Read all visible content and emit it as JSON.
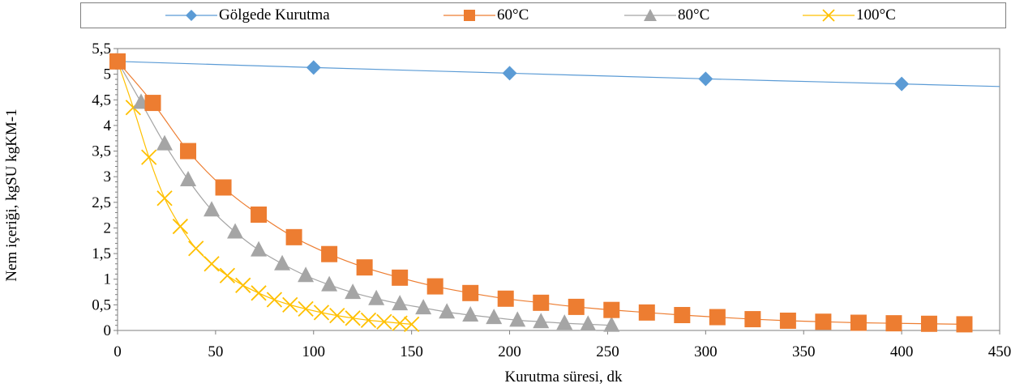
{
  "chart_data": {
    "type": "line",
    "title": "",
    "xlabel": "Kurutma süresi, dk",
    "ylabel": "Nem içeriği, kgSU kgKM-1",
    "xlim": [
      0,
      450
    ],
    "ylim": [
      0,
      5.5
    ],
    "x_ticks": [
      "0",
      "50",
      "100",
      "150",
      "200",
      "250",
      "300",
      "350",
      "400",
      "450"
    ],
    "y_ticks": [
      "0",
      "0,5",
      "1",
      "1,5",
      "2",
      "2,5",
      "3",
      "3,5",
      "4",
      "4,5",
      "5",
      "5,5"
    ],
    "legend_position": "top",
    "series": [
      {
        "name": "Gölgede Kurutma",
        "color": "#5b9bd5",
        "marker": "diamond",
        "x": [
          0,
          100,
          200,
          300,
          400
        ],
        "y": [
          5.25,
          5.13,
          5.02,
          4.91,
          4.81
        ],
        "trend_end": [
          450,
          4.76
        ]
      },
      {
        "name": "60°C",
        "color": "#ed7d31",
        "marker": "square",
        "x": [
          0,
          18,
          36,
          54,
          72,
          90,
          108,
          126,
          144,
          162,
          180,
          198,
          216,
          234,
          252,
          270,
          288,
          306,
          324,
          342,
          360,
          378,
          396,
          414,
          432
        ],
        "y": [
          5.25,
          4.44,
          3.5,
          2.79,
          2.26,
          1.82,
          1.49,
          1.23,
          1.03,
          0.86,
          0.73,
          0.62,
          0.54,
          0.46,
          0.4,
          0.35,
          0.3,
          0.26,
          0.22,
          0.19,
          0.17,
          0.15,
          0.14,
          0.13,
          0.12
        ]
      },
      {
        "name": "80°C",
        "color": "#a5a5a5",
        "marker": "triangle",
        "x": [
          0,
          12,
          24,
          36,
          48,
          60,
          72,
          84,
          96,
          108,
          120,
          132,
          144,
          156,
          168,
          180,
          192,
          204,
          216,
          228,
          240,
          252
        ],
        "y": [
          5.25,
          4.45,
          3.64,
          2.94,
          2.35,
          1.92,
          1.57,
          1.3,
          1.07,
          0.89,
          0.74,
          0.62,
          0.52,
          0.44,
          0.36,
          0.3,
          0.25,
          0.2,
          0.17,
          0.14,
          0.12,
          0.1
        ]
      },
      {
        "name": "100°C",
        "color": "#ffc000",
        "marker": "x",
        "x": [
          0,
          8,
          16,
          24,
          32,
          40,
          48,
          56,
          64,
          72,
          80,
          88,
          96,
          104,
          112,
          120,
          128,
          136,
          144,
          150
        ],
        "y": [
          5.25,
          4.35,
          3.38,
          2.58,
          2.03,
          1.6,
          1.3,
          1.07,
          0.88,
          0.73,
          0.6,
          0.5,
          0.42,
          0.35,
          0.29,
          0.24,
          0.2,
          0.17,
          0.14,
          0.12
        ]
      }
    ]
  }
}
